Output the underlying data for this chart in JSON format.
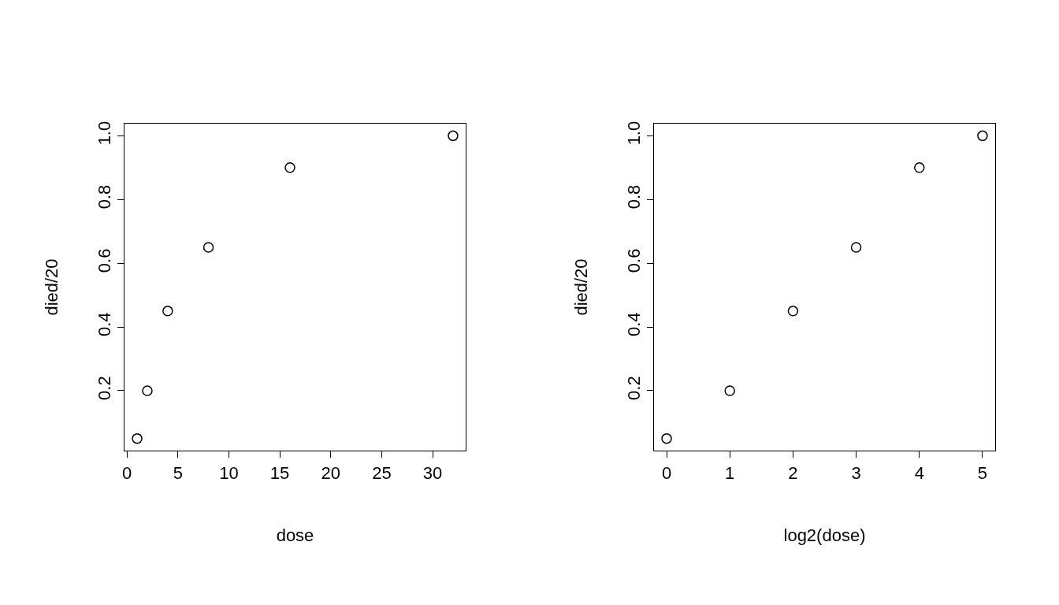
{
  "chart_data": [
    {
      "type": "scatter",
      "xlabel": "dose",
      "ylabel": "died/20",
      "x": [
        1,
        2,
        4,
        8,
        16,
        32
      ],
      "values": [
        0.05,
        0.2,
        0.45,
        0.65,
        0.9,
        1.0
      ],
      "color": "#000000",
      "marker": "circle",
      "grid": false,
      "xlim": [
        -0.24,
        33.24
      ],
      "ylim": [
        0.012,
        1.038
      ],
      "xticks": [
        0,
        5,
        10,
        15,
        20,
        25,
        30
      ],
      "yticks": [
        {
          "value": 0.2,
          "label": "0.2"
        },
        {
          "value": 0.4,
          "label": "0.4"
        },
        {
          "value": 0.6,
          "label": "0.6"
        },
        {
          "value": 0.8,
          "label": "0.8"
        },
        {
          "value": 1,
          "label": "1.0"
        }
      ]
    },
    {
      "type": "scatter",
      "xlabel": "log2(dose)",
      "ylabel": "died/20",
      "x": [
        0,
        1,
        2,
        3,
        4,
        5
      ],
      "values": [
        0.05,
        0.2,
        0.45,
        0.65,
        0.9,
        1.0
      ],
      "color": "#000000",
      "marker": "circle",
      "grid": false,
      "xlim": [
        -0.2,
        5.2
      ],
      "ylim": [
        0.012,
        1.038
      ],
      "xticks": [
        0,
        1,
        2,
        3,
        4,
        5
      ],
      "yticks": [
        {
          "value": 0.2,
          "label": "0.2"
        },
        {
          "value": 0.4,
          "label": "0.4"
        },
        {
          "value": 0.6,
          "label": "0.6"
        },
        {
          "value": 0.8,
          "label": "0.8"
        },
        {
          "value": 1,
          "label": "1.0"
        }
      ]
    }
  ]
}
